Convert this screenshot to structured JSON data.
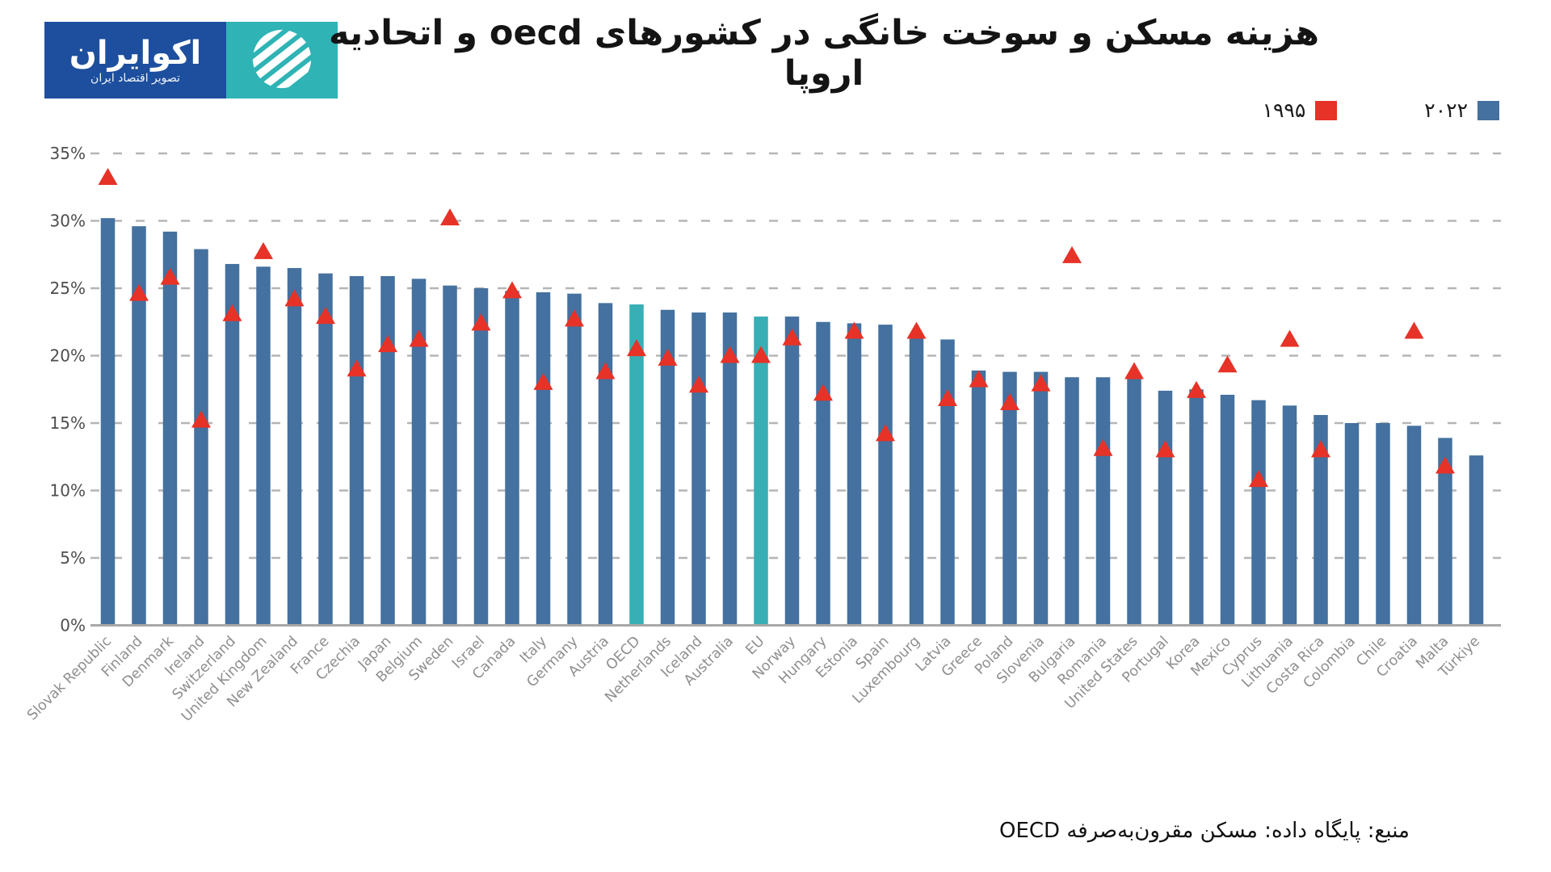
{
  "header": {
    "title": "هزینه مسکن و سوخت خانگی در کشورهای oecd و اتحادیه اروپا",
    "logo": {
      "brand": "اکوایران",
      "tagline": "تصویر اقتصاد ایران",
      "brand_bg_color": "#1d4f9e",
      "mark_bg_color": "#2fb3b5"
    }
  },
  "legend": {
    "items": [
      {
        "label": "۱۹۹۵",
        "color": "#e63227",
        "marker": "triangle-series-swatch"
      },
      {
        "label": "۲۰۲۲",
        "color": "#44719f",
        "marker": "bar-series-swatch"
      }
    ]
  },
  "source": {
    "text": "منبع: پایگاه داده: مسکن مقرون‌به‌صرفه OECD"
  },
  "chart_data": {
    "type": "bar",
    "title": "هزینه مسکن و سوخت خانگی در کشورهای oecd و اتحادیه اروپا",
    "xlabel": "",
    "ylabel": "",
    "ylim": [
      0,
      36.5
    ],
    "yticks": [
      0,
      5,
      10,
      15,
      20,
      25,
      30,
      35
    ],
    "ytick_format": "{v}%",
    "grid": "horizontal-dashed",
    "legend_position": "top-right",
    "gridline_color": "#b5b5b5",
    "axis_line_color": "#a8a8a8",
    "ytick_label_color": "#4d4d4d",
    "xtick_label_color": "#8f8f8f",
    "categories": [
      "Slovak Republic",
      "Finland",
      "Denmark",
      "Ireland",
      "Switzerland",
      "United Kingdom",
      "New Zealand",
      "France",
      "Czechia",
      "Japan",
      "Belgium",
      "Sweden",
      "Israel",
      "Canada",
      "Italy",
      "Germany",
      "Austria",
      "OECD",
      "Netherlands",
      "Iceland",
      "Australia",
      "EU",
      "Norway",
      "Hungary",
      "Estonia",
      "Spain",
      "Luxembourg",
      "Latvia",
      "Greece",
      "Poland",
      "Slovenia",
      "Bulgaria",
      "Romania",
      "United States",
      "Portugal",
      "Korea",
      "Mexico",
      "Cyprus",
      "Lithuania",
      "Costa Rica",
      "Colombia",
      "Chile",
      "Croatia",
      "Malta",
      "Türkiye"
    ],
    "series": [
      {
        "name": "۲۰۲۲",
        "type": "bar",
        "color": "#44719f",
        "highlight_color": "#38aeb5",
        "highlight_categories": [
          "OECD",
          "EU"
        ],
        "values": [
          30.2,
          29.6,
          29.2,
          27.9,
          26.8,
          26.6,
          26.5,
          26.1,
          25.9,
          25.9,
          25.7,
          25.2,
          25.0,
          24.8,
          24.7,
          24.6,
          23.9,
          23.8,
          23.4,
          23.2,
          23.2,
          22.9,
          22.9,
          22.5,
          22.4,
          22.3,
          21.4,
          21.2,
          18.9,
          18.8,
          18.8,
          18.4,
          18.4,
          18.4,
          17.4,
          17.5,
          17.1,
          16.7,
          16.3,
          15.6,
          15.0,
          15.0,
          14.8,
          13.9,
          12.6
        ]
      },
      {
        "name": "۱۹۹۵",
        "type": "scatter",
        "marker": "triangle-up",
        "color": "#e63227",
        "values": [
          33.2,
          24.6,
          25.8,
          15.2,
          23.1,
          27.7,
          24.2,
          22.9,
          19.0,
          20.8,
          21.2,
          30.2,
          22.4,
          24.8,
          18.0,
          22.7,
          18.8,
          20.5,
          19.8,
          17.8,
          20.0,
          20.0,
          21.3,
          17.2,
          21.8,
          14.2,
          21.8,
          16.8,
          18.2,
          16.5,
          17.9,
          27.4,
          13.1,
          18.8,
          13.0,
          17.4,
          19.3,
          10.8,
          21.2,
          13.0,
          null,
          null,
          21.8,
          11.8,
          null
        ]
      }
    ]
  }
}
